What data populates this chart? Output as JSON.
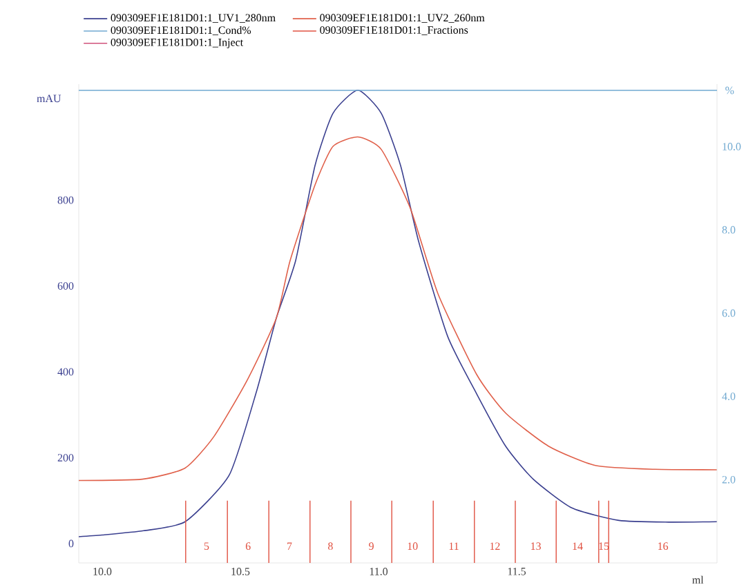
{
  "chart_data": {
    "type": "line",
    "xlabel": "ml",
    "ylabel": "mAU",
    "y2label": "%",
    "xlim": [
      9.915,
      12.225
    ],
    "ylim": [
      -45,
      1070
    ],
    "y2lim": [
      0,
      11.5
    ],
    "xticks": [
      {
        "value": 10,
        "label": "10.0"
      },
      {
        "value": 10.5,
        "label": "10.5"
      },
      {
        "value": 11,
        "label": "11.0"
      },
      {
        "value": 11.5,
        "label": "11.5"
      }
    ],
    "yticks": [
      0,
      200,
      400,
      600,
      800
    ],
    "y2ticks": [
      {
        "value": 2,
        "label": "2.0"
      },
      {
        "value": 4,
        "label": "4.0"
      },
      {
        "value": 6,
        "label": "6.0"
      },
      {
        "value": 8,
        "label": "8.0"
      },
      {
        "value": 10,
        "label": "10.0"
      }
    ],
    "legend": "top",
    "grid": false,
    "series": [
      {
        "name": "090309EF1E181D01:1_UV1_280nm",
        "color": "#3a3f8f",
        "x": [
          9.915,
          10.0,
          10.15,
          10.3,
          10.46,
          10.56,
          10.63,
          10.7,
          10.77,
          10.835,
          10.925,
          11.01,
          11.08,
          11.145,
          11.25,
          11.355,
          11.46,
          11.56,
          11.7,
          11.87,
          12.05,
          12.225
        ],
        "values": [
          16,
          20,
          30,
          51,
          160,
          358,
          525,
          659,
          880,
          1002,
          1056,
          1002,
          880,
          704,
          483,
          349,
          227,
          150,
          83,
          54,
          50,
          51
        ]
      },
      {
        "name": "090309EF1E181D01:1_UV2_260nm",
        "color": "#e0604a",
        "x": [
          9.915,
          10.145,
          10.3,
          10.405,
          10.525,
          10.63,
          10.68,
          10.77,
          10.835,
          10.925,
          11.01,
          11.115,
          11.215,
          11.355,
          11.46,
          11.615,
          11.785,
          12.0,
          12.225
        ],
        "values": [
          147,
          150,
          176,
          250,
          381,
          525,
          659,
          835,
          925,
          947,
          918,
          781,
          582,
          394,
          304,
          227,
          182,
          173,
          172
        ]
      },
      {
        "name": "090309EF1E181D01:1_Cond%",
        "color": "#6fa8d0",
        "axis": "y2",
        "x": [
          9.915,
          12.225
        ],
        "values": [
          11.35,
          11.35
        ]
      },
      {
        "name": "090309EF1E181D01:1_Fractions",
        "color": "#e05040"
      },
      {
        "name": "090309EF1E181D01:1_Inject",
        "color": "#d0507a"
      }
    ],
    "ref_lines": [
      {
        "axis": "x",
        "value": 10.302,
        "color": "#e05040"
      },
      {
        "axis": "x",
        "value": 10.453,
        "color": "#e05040"
      },
      {
        "axis": "x",
        "value": 10.603,
        "color": "#e05040"
      },
      {
        "axis": "x",
        "value": 10.752,
        "color": "#e05040"
      },
      {
        "axis": "x",
        "value": 10.9,
        "color": "#e05040"
      },
      {
        "axis": "x",
        "value": 11.048,
        "color": "#e05040"
      },
      {
        "axis": "x",
        "value": 11.198,
        "color": "#e05040"
      },
      {
        "axis": "x",
        "value": 11.347,
        "color": "#e05040"
      },
      {
        "axis": "x",
        "value": 11.495,
        "color": "#e05040"
      },
      {
        "axis": "x",
        "value": 11.643,
        "color": "#e05040"
      },
      {
        "axis": "x",
        "value": 11.797,
        "color": "#e05040"
      },
      {
        "axis": "x",
        "value": 11.833,
        "color": "#e05040"
      }
    ],
    "annotations": [
      "5",
      "6",
      "7",
      "8",
      "9",
      "10",
      "11",
      "12",
      "13",
      "14",
      "15",
      "16"
    ]
  }
}
